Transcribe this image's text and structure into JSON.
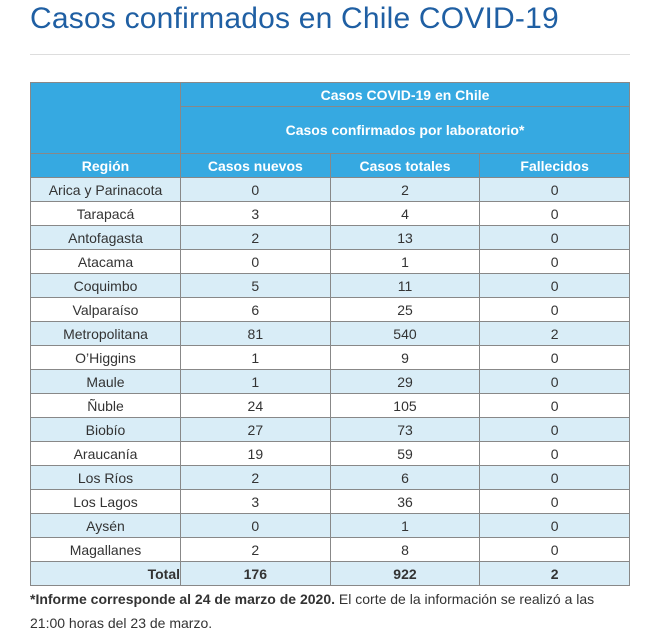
{
  "title": "Casos confirmados en Chile COVID-19",
  "table": {
    "group_header": "Casos COVID-19 en Chile",
    "sub_header": "Casos confirmados por laboratorio*",
    "columns": [
      "Región",
      "Casos nuevos",
      "Casos totales",
      "Fallecidos"
    ],
    "rows": [
      [
        "Arica y Parinacota",
        "0",
        "2",
        "0"
      ],
      [
        "Tarapacá",
        "3",
        "4",
        "0"
      ],
      [
        "Antofagasta",
        "2",
        "13",
        "0"
      ],
      [
        "Atacama",
        "0",
        "1",
        "0"
      ],
      [
        "Coquimbo",
        "5",
        "11",
        "0"
      ],
      [
        "Valparaíso",
        "6",
        "25",
        "0"
      ],
      [
        "Metropolitana",
        "81",
        "540",
        "2"
      ],
      [
        "O’Higgins",
        "1",
        "9",
        "0"
      ],
      [
        "Maule",
        "1",
        "29",
        "0"
      ],
      [
        "Ñuble",
        "24",
        "105",
        "0"
      ],
      [
        "Biobío",
        "27",
        "73",
        "0"
      ],
      [
        "Araucanía",
        "19",
        "59",
        "0"
      ],
      [
        "Los Ríos",
        "2",
        "6",
        "0"
      ],
      [
        "Los Lagos",
        "3",
        "36",
        "0"
      ],
      [
        "Aysén",
        "0",
        "1",
        "0"
      ],
      [
        "Magallanes",
        "2",
        "8",
        "0"
      ]
    ],
    "total": [
      "Total",
      "176",
      "922",
      "2"
    ]
  },
  "note": {
    "bold": "*Informe corresponde al 24 de marzo de 2020.",
    "rest": " El corte de la información se realizó a las 21:00 horas del 23 de marzo."
  }
}
